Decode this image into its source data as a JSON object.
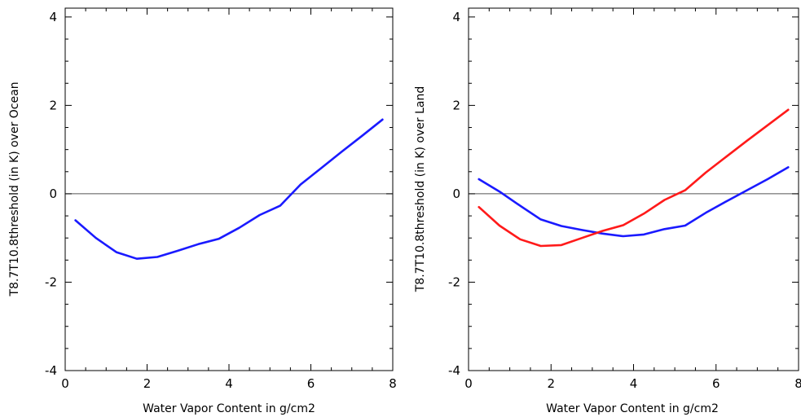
{
  "chart_data": [
    {
      "type": "line",
      "ylabel": "T8.7T10.8threshold (in K) over Ocean",
      "xlabel": "Water Vapor Content in g/cm2",
      "xlim": [
        0,
        8
      ],
      "ylim": [
        -4,
        4.2
      ],
      "xticks": [
        "0",
        "2",
        "4",
        "6",
        "8"
      ],
      "yticks": [
        "-4",
        "-2",
        "0",
        "2",
        "4"
      ],
      "reference_line_y": 0,
      "grid": false,
      "series": [
        {
          "color": "#1a1aff",
          "x": [
            0.25,
            0.75,
            1.25,
            1.75,
            2.25,
            2.75,
            3.25,
            3.75,
            4.25,
            4.75,
            5.25,
            5.75,
            6.25,
            6.75,
            7.25,
            7.75
          ],
          "y": [
            -0.6,
            -1.0,
            -1.32,
            -1.47,
            -1.43,
            -1.29,
            -1.14,
            -1.02,
            -0.77,
            -0.48,
            -0.27,
            0.21,
            0.58,
            0.95,
            1.31,
            1.68
          ]
        }
      ]
    },
    {
      "type": "line",
      "ylabel": "T8.7T10.8threshold (in K) over Land",
      "xlabel": "Water Vapor Content in g/cm2",
      "xlim": [
        0,
        8
      ],
      "ylim": [
        -4,
        4.2
      ],
      "xticks": [
        "0",
        "2",
        "4",
        "6",
        "8"
      ],
      "yticks": [
        "-4",
        "-2",
        "0",
        "2",
        "4"
      ],
      "reference_line_y": 0,
      "grid": false,
      "series": [
        {
          "color": "#1a1aff",
          "x": [
            0.25,
            0.75,
            1.25,
            1.75,
            2.25,
            2.75,
            3.25,
            3.75,
            4.25,
            4.75,
            5.25,
            5.75,
            6.25,
            6.75,
            7.25,
            7.75
          ],
          "y": [
            0.33,
            0.05,
            -0.27,
            -0.58,
            -0.73,
            -0.82,
            -0.9,
            -0.96,
            -0.92,
            -0.8,
            -0.72,
            -0.43,
            -0.17,
            0.08,
            0.33,
            0.6
          ]
        },
        {
          "color": "#ff1a1a",
          "x": [
            0.25,
            0.75,
            1.25,
            1.75,
            2.25,
            2.75,
            3.25,
            3.75,
            4.25,
            4.75,
            5.25,
            5.75,
            6.25,
            6.75,
            7.25,
            7.75
          ],
          "y": [
            -0.3,
            -0.72,
            -1.03,
            -1.18,
            -1.16,
            -1.0,
            -0.84,
            -0.71,
            -0.45,
            -0.14,
            0.08,
            0.48,
            0.84,
            1.2,
            1.55,
            1.9
          ]
        }
      ]
    }
  ]
}
